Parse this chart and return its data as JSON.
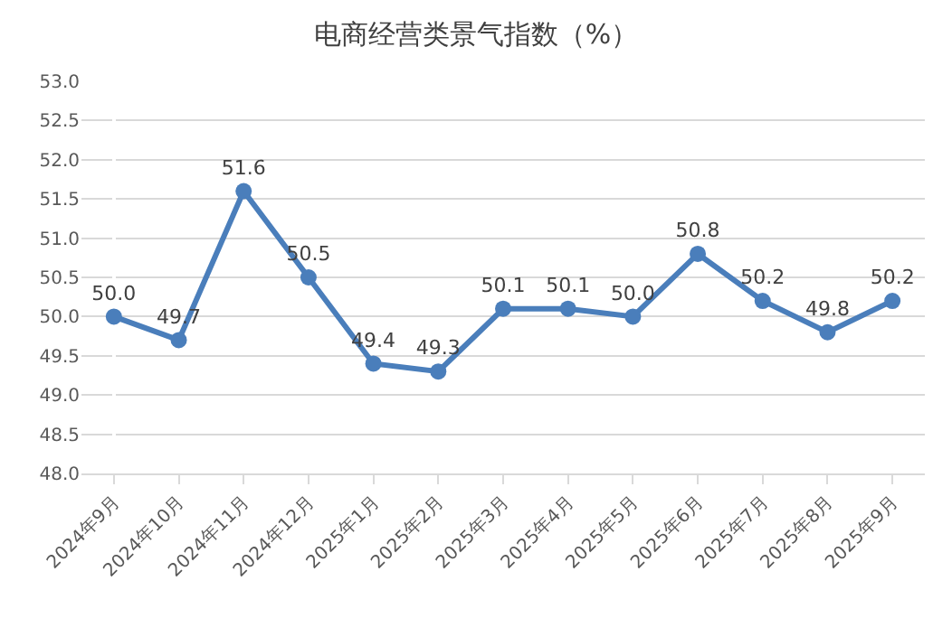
{
  "chart_data": {
    "type": "line",
    "title": "电商经营类景气指数（%）",
    "categories": [
      "2024年9月",
      "2024年10月",
      "2024年11月",
      "2024年12月",
      "2025年1月",
      "2025年2月",
      "2025年3月",
      "2025年4月",
      "2025年5月",
      "2025年6月",
      "2025年7月",
      "2025年8月",
      "2025年9月"
    ],
    "series": [
      {
        "color": "#4a7ebb",
        "values": [
          50.0,
          49.7,
          51.6,
          50.5,
          49.4,
          49.3,
          50.1,
          50.1,
          50.0,
          50.8,
          50.2,
          49.8,
          50.2
        ],
        "value_labels": [
          "50.0",
          "49.7",
          "51.6",
          "50.5",
          "49.4",
          "49.3",
          "50.1",
          "50.1",
          "50.0",
          "50.8",
          "50.2",
          "49.8",
          "50.2"
        ]
      }
    ],
    "ylim": [
      48.0,
      53.0
    ],
    "yticks": [
      {
        "value": 48,
        "label": "48.0"
      },
      {
        "value": 48.5,
        "label": "48.5"
      },
      {
        "value": 49,
        "label": "49.0"
      },
      {
        "value": 49.5,
        "label": "49.5"
      },
      {
        "value": 50,
        "label": "50.0"
      },
      {
        "value": 50.5,
        "label": "50.5"
      },
      {
        "value": 51,
        "label": "51.0"
      },
      {
        "value": 51.5,
        "label": "51.5"
      },
      {
        "value": 52,
        "label": "52.0"
      },
      {
        "value": 52.5,
        "label": "52.5"
      },
      {
        "value": 53,
        "label": "53.0"
      }
    ],
    "grid": "y",
    "marker": "circle",
    "line_style": "solid",
    "legend": false
  }
}
